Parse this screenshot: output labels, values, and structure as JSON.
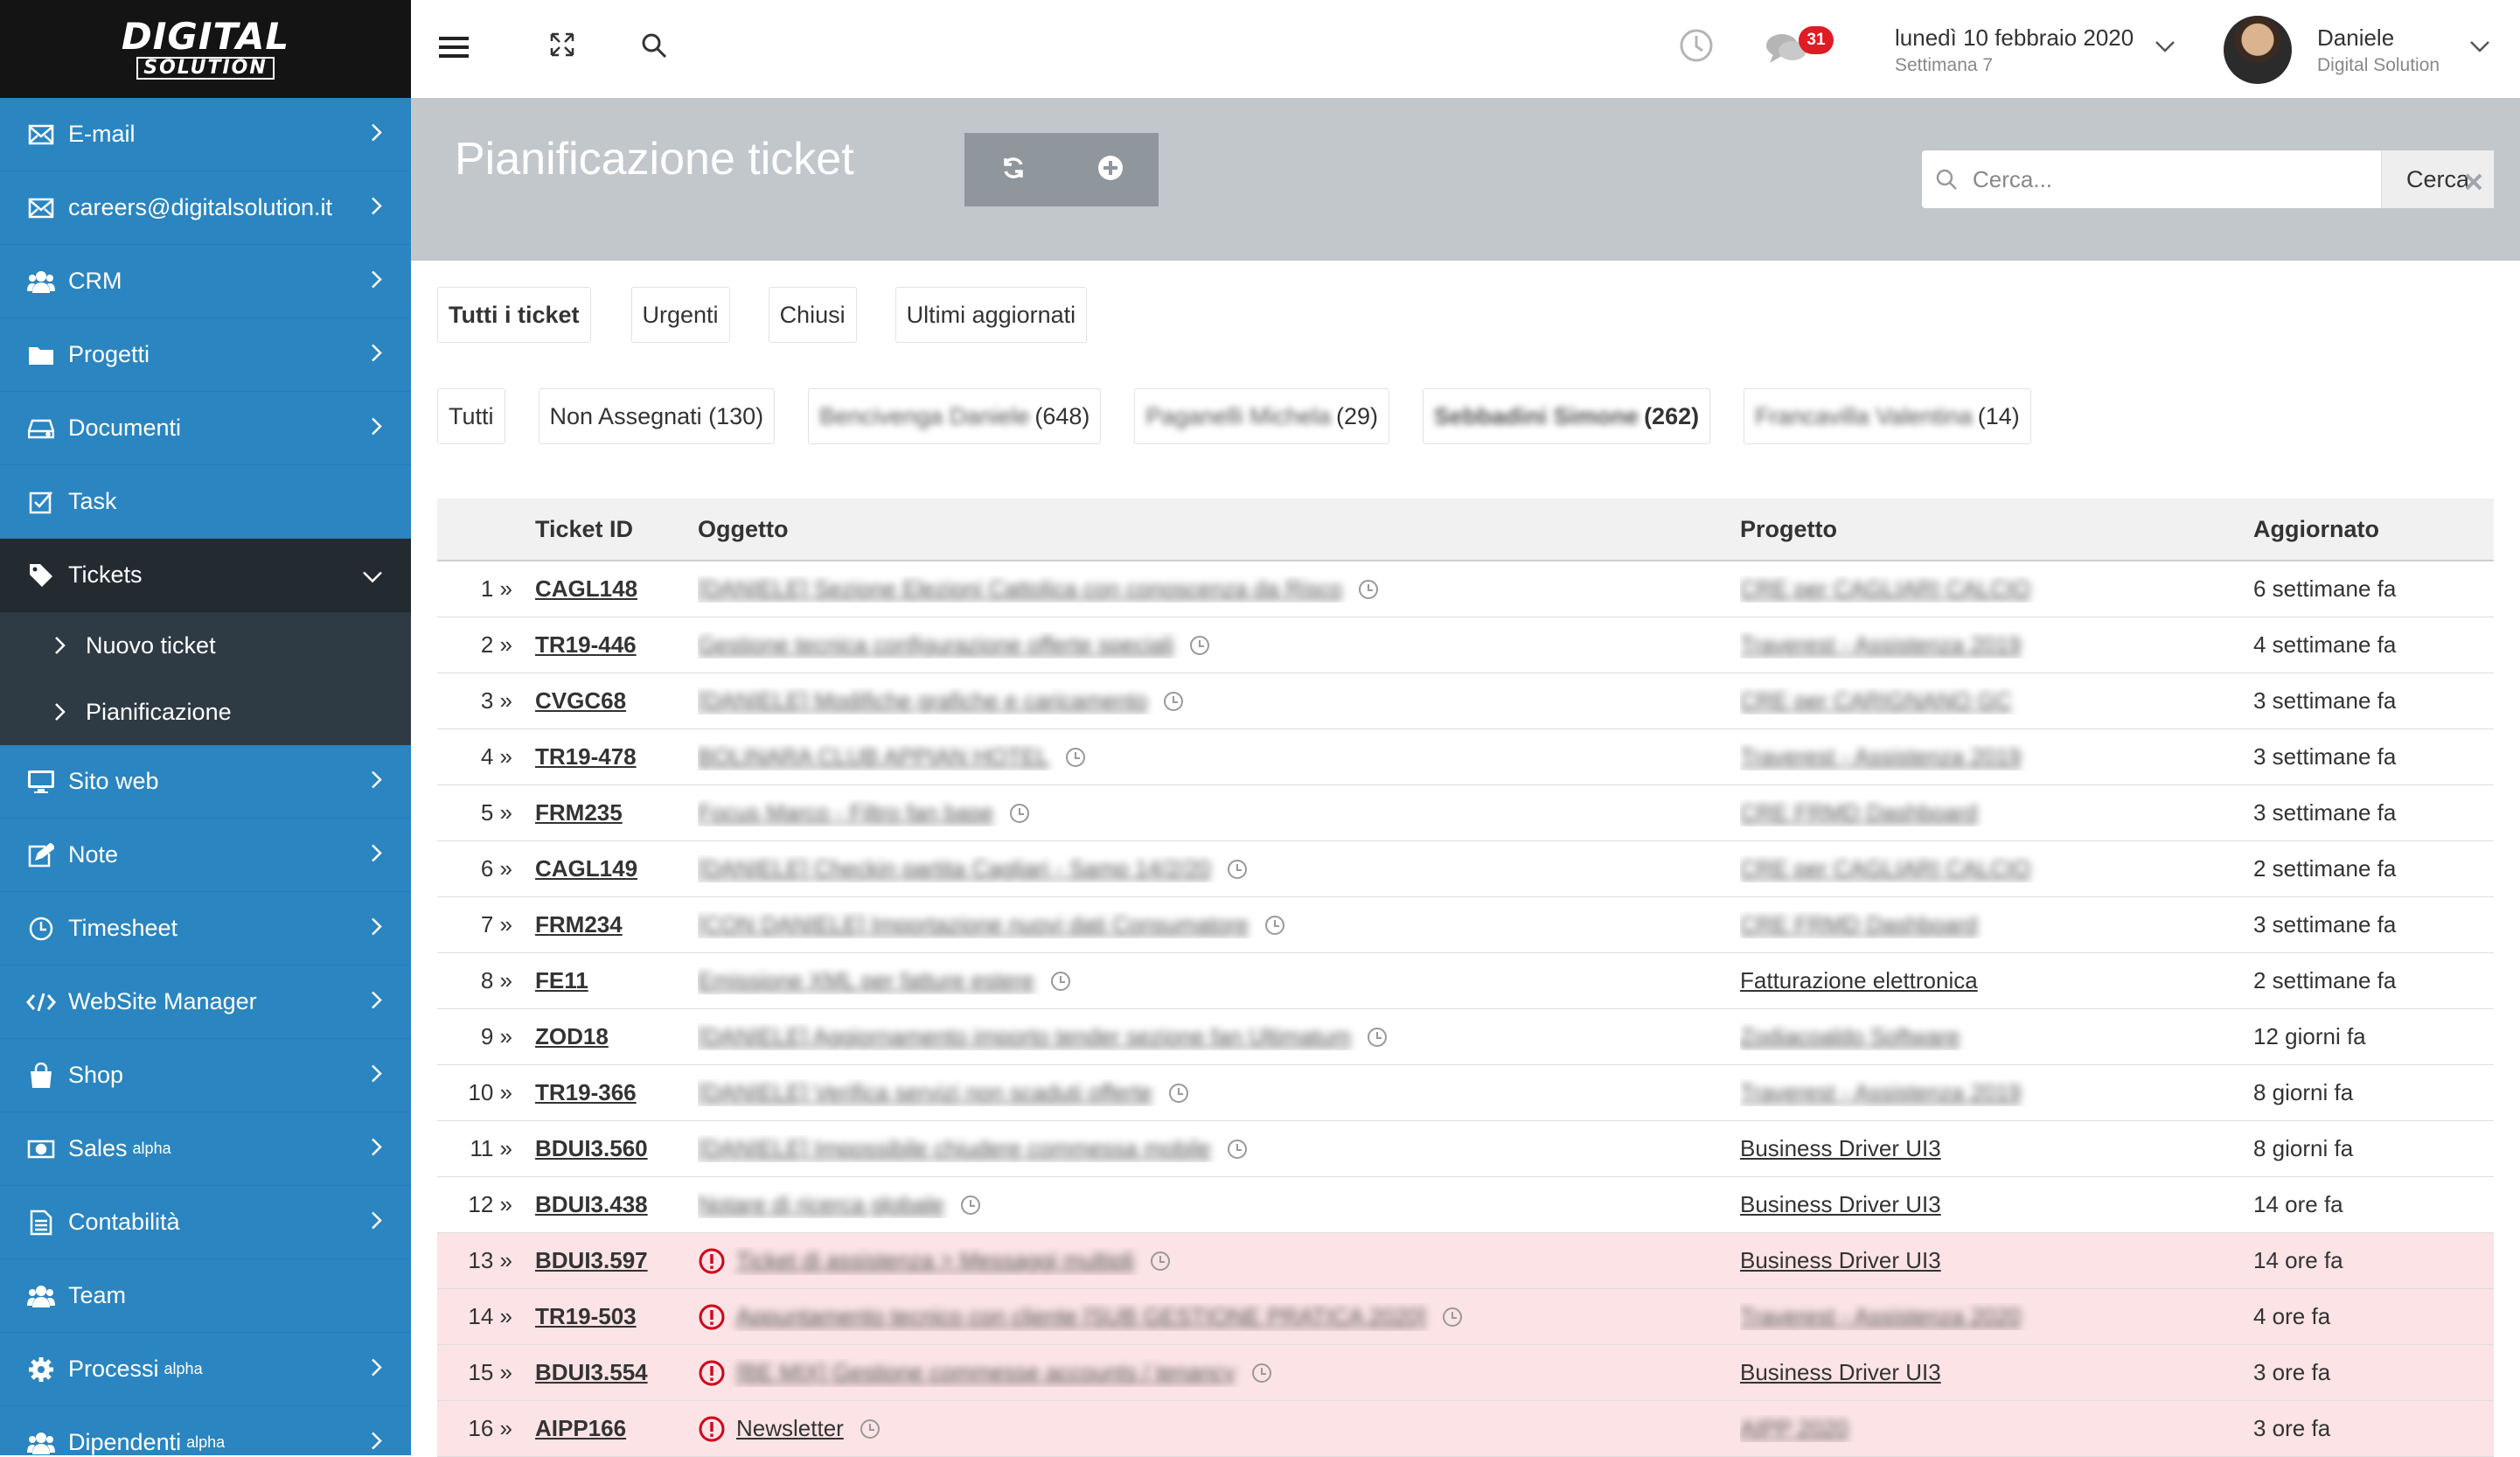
{
  "logo": {
    "line1": "DIGITAL",
    "line2": "SOLUTION"
  },
  "sidebar": {
    "items": [
      {
        "label": "E-mail",
        "icon": "envelope-icon"
      },
      {
        "label": "careers@digitalsolution.it",
        "icon": "envelope-icon"
      },
      {
        "label": "CRM",
        "icon": "users-icon"
      },
      {
        "label": "Progetti",
        "icon": "folder-icon"
      },
      {
        "label": "Documenti",
        "icon": "drive-icon"
      },
      {
        "label": "Task",
        "icon": "checkbox-icon"
      },
      {
        "label": "Tickets",
        "icon": "tag-icon"
      },
      {
        "label": "Sito web",
        "icon": "monitor-icon"
      },
      {
        "label": "Note",
        "icon": "edit-icon"
      },
      {
        "label": "Timesheet",
        "icon": "clock-icon"
      },
      {
        "label": "WebSite Manager",
        "icon": "code-icon"
      },
      {
        "label": "Shop",
        "icon": "shopping-bag-icon"
      },
      {
        "label": "Sales",
        "sup": "alpha",
        "icon": "money-icon"
      },
      {
        "label": "Contabilità",
        "icon": "document-icon"
      },
      {
        "label": "Team",
        "icon": "users-icon"
      },
      {
        "label": "Processi",
        "sup": "alpha",
        "icon": "gear-icon"
      },
      {
        "label": "Dipendenti",
        "sup": "alpha",
        "icon": "users-icon"
      }
    ],
    "tickets_sub": [
      {
        "label": "Nuovo ticket"
      },
      {
        "label": "Pianificazione"
      }
    ]
  },
  "topbar": {
    "notifications_count": "31",
    "date": "lunedì 10 febbraio 2020",
    "week": "Settimana 7",
    "user_name": "Daniele",
    "user_company": "Digital Solution"
  },
  "header": {
    "title": "Pianificazione ticket",
    "search_placeholder": "Cerca...",
    "search_button": "Cerca"
  },
  "filters": {
    "tabs": [
      "Tutti i ticket",
      "Urgenti",
      "Chiusi",
      "Ultimi aggiornati"
    ],
    "assignees": [
      {
        "label": "Tutti"
      },
      {
        "label": "Non Assegnati (130)"
      },
      {
        "name": "Bencivenga Daniele",
        "count": "(648)"
      },
      {
        "name": "Paganelli Michela",
        "count": "(29)"
      },
      {
        "name": "Sebbadini Simone",
        "count": "(262)",
        "bold": true
      },
      {
        "name": "Francavilla Valentina",
        "count": "(14)"
      }
    ]
  },
  "table": {
    "headers": {
      "id": "Ticket ID",
      "subject": "Oggetto",
      "project": "Progetto",
      "updated": "Aggiornato"
    },
    "rows": [
      {
        "num": "1 »",
        "id": "CAGL148",
        "subject": "[DANIELE] Sezione Elezioni Cattolica con conoscenza da Risco",
        "subject_blur": true,
        "project": "CRE per CAGLIARI CALCIO",
        "project_blur": true,
        "updated": "6 settimane fa",
        "urgent": false
      },
      {
        "num": "2 »",
        "id": "TR19-446",
        "subject": "Gestione tecnica configurazione offerte speciali",
        "subject_blur": true,
        "project": "Traverest - Assistenza 2019",
        "project_blur": true,
        "updated": "4 settimane fa",
        "urgent": false
      },
      {
        "num": "3 »",
        "id": "CVGC68",
        "subject": "[DANIELE] Modifiche grafiche e caricamento",
        "subject_blur": true,
        "project": "CRE per CARIGNANO GC",
        "project_blur": true,
        "updated": "3 settimane fa",
        "urgent": false
      },
      {
        "num": "4 »",
        "id": "TR19-478",
        "subject": "BOLINARA CLUB APPIAN HOTEL",
        "subject_blur": true,
        "project": "Traverest - Assistenza 2019",
        "project_blur": true,
        "updated": "3 settimane fa",
        "urgent": false
      },
      {
        "num": "5 »",
        "id": "FRM235",
        "subject": "Focus Marco - Filtro fan base",
        "subject_blur": true,
        "project": "CRE FRMD Dashboard",
        "project_blur": true,
        "updated": "3 settimane fa",
        "urgent": false
      },
      {
        "num": "6 »",
        "id": "CAGL149",
        "subject": "[DANIELE] Checkin partita Cagliari - Samp 14/2/20",
        "subject_blur": true,
        "project": "CRE per CAGLIARI CALCIO",
        "project_blur": true,
        "updated": "2 settimane fa",
        "urgent": false
      },
      {
        "num": "7 »",
        "id": "FRM234",
        "subject": "[CON DANIELE] Importazione nuovi dati Consumatore",
        "subject_blur": true,
        "project": "CRE FRMD Dashboard",
        "project_blur": true,
        "updated": "3 settimane fa",
        "urgent": false
      },
      {
        "num": "8 »",
        "id": "FE11",
        "subject": "Emissione XML per fatture estere",
        "subject_blur": true,
        "project": "Fatturazione elettronica",
        "project_blur": false,
        "updated": "2 settimane fa",
        "urgent": false
      },
      {
        "num": "9 »",
        "id": "ZOD18",
        "subject": "[DANIELE] Aggiornamento importo tender sezione fan Ultimatum",
        "subject_blur": true,
        "project": "Zodiacoaldo Software",
        "project_blur": true,
        "updated": "12 giorni fa",
        "urgent": false
      },
      {
        "num": "10 »",
        "id": "TR19-366",
        "subject": "[DANIELE] Verifica servizi non scaduti offerte",
        "subject_blur": true,
        "project": "Traverest - Assistenza 2019",
        "project_blur": true,
        "updated": "8 giorni fa",
        "urgent": false
      },
      {
        "num": "11 »",
        "id": "BDUI3.560",
        "subject": "[DANIELE] Impossibile chiudere commessa mobile",
        "subject_blur": true,
        "project": "Business Driver UI3",
        "project_blur": false,
        "updated": "8 giorni fa",
        "urgent": false
      },
      {
        "num": "12 »",
        "id": "BDUI3.438",
        "subject": "Notare di ricerca globale",
        "subject_blur": true,
        "project": "Business Driver UI3",
        "project_blur": false,
        "updated": "14 ore fa",
        "urgent": false
      },
      {
        "num": "13 »",
        "id": "BDUI3.597",
        "subject": "Ticket di assistenza > Messaggi multipli",
        "subject_blur": true,
        "project": "Business Driver UI3",
        "project_blur": false,
        "updated": "14 ore fa",
        "urgent": true
      },
      {
        "num": "14 »",
        "id": "TR19-503",
        "subject": "Appuntamento tecnico con cliente [SUB GESTIONE PRATICA 2020]",
        "subject_blur": true,
        "project": "Traverest - Assistenza 2020",
        "project_blur": true,
        "updated": "4 ore fa",
        "urgent": true
      },
      {
        "num": "15 »",
        "id": "BDUI3.554",
        "subject": "[BE MIX] Gestione commesse accounts / tenancy",
        "subject_blur": true,
        "project": "Business Driver UI3",
        "project_blur": false,
        "updated": "3 ore fa",
        "urgent": true
      },
      {
        "num": "16 »",
        "id": "AIPP166",
        "subject": "Newsletter",
        "subject_blur": false,
        "project": "AIPP 2020",
        "project_blur": true,
        "updated": "3 ore fa",
        "urgent": true
      }
    ]
  },
  "colors": {
    "sidebar": "#2a85c0",
    "sidebar_active": "#232a30",
    "urgent_row": "#fbe3e6",
    "header_band": "#c2c7cc",
    "alert": "#d0021b"
  }
}
